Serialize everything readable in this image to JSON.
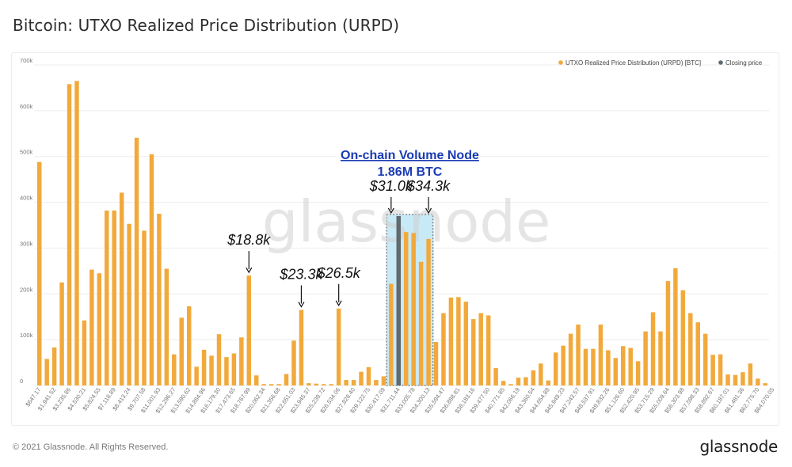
{
  "page": {
    "title": "Bitcoin: UTXO Realized Price Distribution (URPD)",
    "copyright": "© 2021 Glassnode. All Rights Reserved.",
    "brand": "glassnode",
    "watermark": "glassnode"
  },
  "colors": {
    "bar": "#F2A93B",
    "closing": "#5E6A6F",
    "highlight_fill": "#BFE6F5",
    "highlight_border": "#333333",
    "node_title": "#1A3BB5",
    "grid": "#EDEDED"
  },
  "chart_data": {
    "type": "bar",
    "title": "Bitcoin: UTXO Realized Price Distribution (URPD)",
    "legend_position": "top-right",
    "legend": [
      {
        "label": "UTXO Realized Price Distribution (URPD) [BTC]",
        "color": "#F2A93B"
      },
      {
        "label": "Closing price",
        "color": "#5E6A6F"
      }
    ],
    "y_ticks": [
      "0",
      "100k",
      "200k",
      "300k",
      "400k",
      "500k",
      "600k",
      "700k"
    ],
    "ylim": [
      0,
      700000
    ],
    "grid": true,
    "x_tick_labels": [
      "$647.17",
      "$1,941.52",
      "$3,235.86",
      "$4,530.21",
      "$5,824.55",
      "$7,118.89",
      "$8,413.24",
      "$9,707.58",
      "$11,001.93",
      "$12,296.27",
      "$13,590.62",
      "$14,884.96",
      "$16,179.30",
      "$17,473.65",
      "$18,767.99",
      "$20,062.34",
      "$21,356.68",
      "$22,651.03",
      "$23,945.37",
      "$25,239.72",
      "$26,534.06",
      "$27,828.40",
      "$29,122.75",
      "$30,417.09",
      "$31,711.44",
      "$33,005.78",
      "$34,300.13",
      "$35,594.47",
      "$36,888.81",
      "$38,183.16",
      "$39,477.50",
      "$40,771.85",
      "$42,066.19",
      "$43,360.54",
      "$44,654.88",
      "$45,949.23",
      "$47,243.57",
      "$48,537.91",
      "$49,832.26",
      "$51,126.60",
      "$52,420.95",
      "$53,715.29",
      "$55,009.64",
      "$56,303.98",
      "$57,598.33",
      "$58,892.67",
      "$60,187.01",
      "$61,481.36",
      "$62,775.70",
      "$64,070.05"
    ],
    "values": [
      488000,
      58000,
      83000,
      225000,
      658000,
      665000,
      142000,
      253000,
      245000,
      382000,
      382000,
      421000,
      353000,
      541000,
      338000,
      505000,
      375000,
      255000,
      68000,
      148000,
      173000,
      41000,
      78000,
      65000,
      112000,
      62000,
      70000,
      105000,
      240000,
      22000,
      3000,
      3000,
      3000,
      25000,
      98000,
      165000,
      5000,
      4000,
      3000,
      3000,
      168000,
      12000,
      12000,
      30000,
      40000,
      12000,
      20000,
      222000,
      368000,
      335000,
      333000,
      270000,
      320000,
      95000,
      158000,
      192000,
      193000,
      183000,
      145000,
      158000,
      153000,
      38000,
      10000,
      3000,
      17000,
      18000,
      33000,
      48000,
      11000,
      72000,
      87000,
      113000,
      133000,
      80000,
      80000,
      133000,
      77000,
      60000,
      86000,
      82000,
      53000,
      118000,
      160000,
      118000,
      228000,
      256000,
      208000,
      158000,
      138000,
      113000,
      67000,
      68000,
      24000,
      23000,
      29000,
      48000,
      15000,
      5000
    ],
    "closing_price_index": 48,
    "annotations": {
      "node_title_line1": "On-chain Volume Node",
      "node_title_line2": "1.86M BTC",
      "price_labels": [
        {
          "text": "$18.8k",
          "bar_index": 28
        },
        {
          "text": "$23.3k",
          "bar_index": 35
        },
        {
          "text": "$26.5k",
          "bar_index": 40
        },
        {
          "text": "$31.0k",
          "bar_index": 47
        },
        {
          "text": "$34.3k",
          "bar_index": 52
        }
      ],
      "highlight_range": [
        47,
        52
      ]
    }
  }
}
